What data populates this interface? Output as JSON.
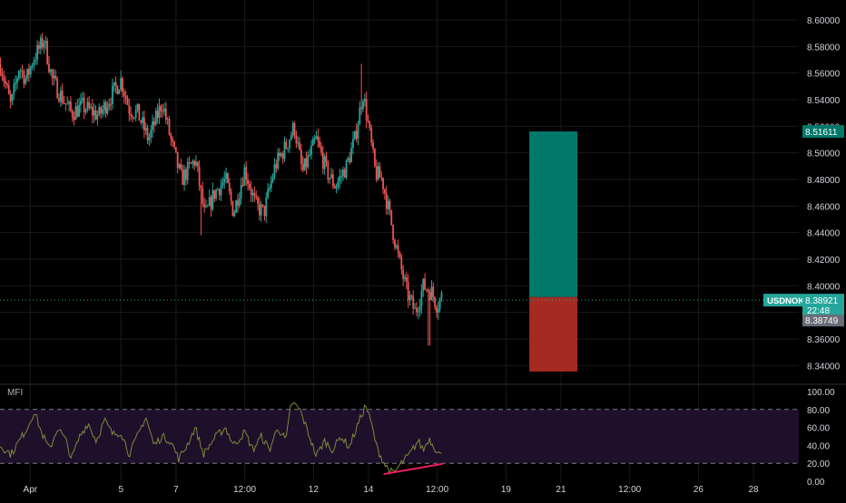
{
  "symbol": "USDNOK",
  "colors": {
    "background": "#000000",
    "up": "#26a69a",
    "down": "#ef5350",
    "grid": "#1a1a1a",
    "axis_text": "#d1d4dc",
    "profit_zone": "#00796b",
    "loss_zone": "#a52a22",
    "mfi_line": "#7e8a3a",
    "mfi_band": "#1e0f2b",
    "divergence": "#e91e63"
  },
  "price_panel": {
    "ylim": [
      8.33,
      8.615
    ],
    "ticks": [
      "8.60000",
      "8.58000",
      "8.56000",
      "8.54000",
      "8.52000",
      "8.50000",
      "8.48000",
      "8.46000",
      "8.44000",
      "8.42000",
      "8.40000",
      "8.38000",
      "8.36000",
      "8.34000"
    ],
    "tick_values": [
      8.6,
      8.58,
      8.56,
      8.54,
      8.52,
      8.5,
      8.48,
      8.46,
      8.44,
      8.42,
      8.4,
      8.38,
      8.36,
      8.34
    ],
    "target_label": "8.51611",
    "target_value": 8.51611,
    "last_price_label": "8.38921",
    "last_price_value": 8.38921,
    "countdown": "22:48",
    "bid_label": "8.38749",
    "bid_value": 8.38749
  },
  "position_tool": {
    "entry": 8.3915,
    "target": 8.51611,
    "stop": 8.3355,
    "x_start": 19.85,
    "x_end": 21.6
  },
  "mfi_panel": {
    "label": "MFI",
    "ylim": [
      -3,
      103
    ],
    "ticks": [
      "100.00",
      "80.00",
      "60.00",
      "40.00",
      "20.00",
      "0.00"
    ],
    "tick_values": [
      100,
      80,
      60,
      40,
      20,
      0
    ],
    "band_upper": 80,
    "band_lower": 20
  },
  "x_axis": {
    "xlim": [
      0.6,
      29.65
    ],
    "labels": [
      "Apr",
      "5",
      "7",
      "12:00",
      "12",
      "14",
      "12:00",
      "19",
      "21",
      "12:00",
      "26",
      "28"
    ],
    "positions": [
      1.7,
      5.0,
      7.0,
      9.5,
      12.0,
      14.0,
      16.5,
      19.0,
      21.0,
      23.5,
      26.0,
      28.0
    ]
  },
  "chart_data": [
    {
      "type": "candlestick",
      "series": "USDNOK",
      "x_unit": "April day",
      "control_points": [
        [
          0.6,
          8.568
        ],
        [
          1.0,
          8.535
        ],
        [
          1.3,
          8.565
        ],
        [
          1.55,
          8.555
        ],
        [
          1.8,
          8.57
        ],
        [
          2.2,
          8.585
        ],
        [
          2.5,
          8.555
        ],
        [
          2.9,
          8.54
        ],
        [
          3.2,
          8.53
        ],
        [
          3.6,
          8.535
        ],
        [
          4.2,
          8.528
        ],
        [
          4.7,
          8.545
        ],
        [
          5.0,
          8.555
        ],
        [
          5.3,
          8.533
        ],
        [
          5.6,
          8.53
        ],
        [
          6.0,
          8.51
        ],
        [
          6.5,
          8.538
        ],
        [
          6.9,
          8.502
        ],
        [
          7.2,
          8.48
        ],
        [
          7.7,
          8.495
        ],
        [
          8.05,
          8.452
        ],
        [
          8.4,
          8.47
        ],
        [
          8.8,
          8.48
        ],
        [
          9.1,
          8.455
        ],
        [
          9.5,
          8.488
        ],
        [
          9.9,
          8.46
        ],
        [
          10.2,
          8.455
        ],
        [
          10.6,
          8.49
        ],
        [
          11.0,
          8.505
        ],
        [
          11.3,
          8.52
        ],
        [
          11.6,
          8.485
        ],
        [
          12.1,
          8.51
        ],
        [
          12.5,
          8.485
        ],
        [
          12.8,
          8.475
        ],
        [
          13.2,
          8.49
        ],
        [
          13.5,
          8.51
        ],
        [
          13.8,
          8.545
        ],
        [
          14.0,
          8.52
        ],
        [
          14.25,
          8.485
        ],
        [
          14.5,
          8.48
        ],
        [
          14.8,
          8.45
        ],
        [
          15.1,
          8.42
        ],
        [
          15.4,
          8.395
        ],
        [
          15.7,
          8.38
        ],
        [
          16.0,
          8.4
        ],
        [
          16.3,
          8.395
        ],
        [
          16.5,
          8.385
        ],
        [
          16.65,
          8.392
        ]
      ],
      "spikes": [
        [
          2.25,
          8.588
        ],
        [
          13.75,
          8.567
        ],
        [
          16.2,
          8.355
        ],
        [
          7.9,
          8.438
        ]
      ],
      "ylim": [
        8.33,
        8.615
      ]
    },
    {
      "type": "line",
      "series": "MFI",
      "control_points": [
        [
          0.6,
          40
        ],
        [
          1.0,
          30
        ],
        [
          1.3,
          45
        ],
        [
          1.6,
          60
        ],
        [
          1.85,
          78
        ],
        [
          2.1,
          55
        ],
        [
          2.4,
          35
        ],
        [
          2.7,
          60
        ],
        [
          3.0,
          45
        ],
        [
          3.2,
          25
        ],
        [
          3.5,
          50
        ],
        [
          3.8,
          65
        ],
        [
          4.1,
          45
        ],
        [
          4.4,
          68
        ],
        [
          4.7,
          52
        ],
        [
          5.0,
          55
        ],
        [
          5.3,
          30
        ],
        [
          5.6,
          50
        ],
        [
          5.9,
          72
        ],
        [
          6.2,
          40
        ],
        [
          6.5,
          50
        ],
        [
          6.8,
          45
        ],
        [
          7.1,
          25
        ],
        [
          7.4,
          40
        ],
        [
          7.7,
          60
        ],
        [
          8.0,
          30
        ],
        [
          8.4,
          48
        ],
        [
          8.8,
          60
        ],
        [
          9.1,
          40
        ],
        [
          9.5,
          55
        ],
        [
          9.8,
          35
        ],
        [
          10.1,
          50
        ],
        [
          10.4,
          35
        ],
        [
          10.7,
          60
        ],
        [
          11.0,
          45
        ],
        [
          11.2,
          88
        ],
        [
          11.5,
          80
        ],
        [
          11.8,
          55
        ],
        [
          12.1,
          28
        ],
        [
          12.4,
          45
        ],
        [
          12.7,
          35
        ],
        [
          13.0,
          50
        ],
        [
          13.3,
          38
        ],
        [
          13.6,
          62
        ],
        [
          13.9,
          85
        ],
        [
          14.1,
          65
        ],
        [
          14.3,
          38
        ],
        [
          14.6,
          18
        ],
        [
          14.9,
          8
        ],
        [
          15.2,
          20
        ],
        [
          15.5,
          30
        ],
        [
          15.8,
          45
        ],
        [
          16.0,
          35
        ],
        [
          16.2,
          48
        ],
        [
          16.4,
          38
        ],
        [
          16.65,
          28
        ]
      ],
      "ylim": [
        -3,
        103
      ],
      "divergence_line": [
        [
          14.55,
          8
        ],
        [
          16.7,
          19.5
        ]
      ]
    }
  ]
}
